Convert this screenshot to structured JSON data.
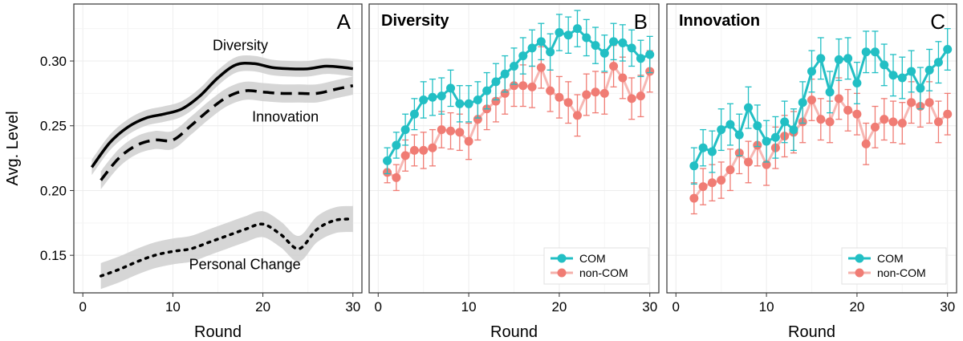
{
  "colors": {
    "com": "#22bfc4",
    "noncom": "#f07c74",
    "band": "#cfcfcf",
    "grid": "#ececec",
    "frame": "#333333"
  },
  "chart_data": [
    {
      "id": "A",
      "type": "line",
      "panel_letter": "A",
      "title": "",
      "xlabel": "Round",
      "ylabel": "Avg. Level",
      "xlim": [
        -1,
        31
      ],
      "ylim": [
        0.121,
        0.344
      ],
      "xticks": [
        0,
        10,
        20,
        30
      ],
      "yticks": [
        0.15,
        0.2,
        0.25,
        0.3
      ],
      "ytick_labels": [
        "0.15",
        "0.20",
        "0.25",
        "0.30"
      ],
      "series": [
        {
          "name": "Diversity",
          "style": "solid",
          "band_halfwidth": 0.006,
          "x": [
            1,
            3,
            5,
            7,
            9,
            11,
            13,
            15,
            17,
            19,
            21,
            23,
            25,
            27,
            29,
            30
          ],
          "values": [
            0.218,
            0.237,
            0.249,
            0.256,
            0.259,
            0.263,
            0.273,
            0.287,
            0.297,
            0.298,
            0.295,
            0.294,
            0.294,
            0.296,
            0.295,
            0.294
          ]
        },
        {
          "name": "Innovation",
          "style": "dashed",
          "band_halfwidth": 0.007,
          "x": [
            2,
            4,
            6,
            8,
            10,
            12,
            14,
            16,
            18,
            20,
            22,
            24,
            26,
            28,
            30
          ],
          "values": [
            0.208,
            0.225,
            0.235,
            0.239,
            0.239,
            0.25,
            0.262,
            0.272,
            0.277,
            0.276,
            0.275,
            0.275,
            0.275,
            0.278,
            0.281
          ]
        },
        {
          "name": "Personal Change",
          "style": "dotted",
          "band_halfwidth": 0.01,
          "x": [
            2,
            4,
            6,
            8,
            10,
            12,
            14,
            16,
            18,
            20,
            22,
            24,
            26,
            28,
            30
          ],
          "values": [
            0.134,
            0.139,
            0.145,
            0.15,
            0.153,
            0.155,
            0.16,
            0.165,
            0.17,
            0.174,
            0.166,
            0.155,
            0.17,
            0.177,
            0.178
          ]
        }
      ],
      "annotations": [
        {
          "text": "Diversity",
          "x": 17.5,
          "y": 0.312
        },
        {
          "text": "Innovation",
          "x": 22.5,
          "y": 0.257
        },
        {
          "text": "Personal Change",
          "x": 18,
          "y": 0.143
        }
      ]
    },
    {
      "id": "B",
      "type": "line",
      "panel_letter": "B",
      "title": "Diversity",
      "xlabel": "Round",
      "ylabel": "",
      "xlim": [
        -1,
        31
      ],
      "ylim": [
        0.121,
        0.344
      ],
      "xticks": [
        0,
        10,
        20,
        30
      ],
      "legend": {
        "position": "bottom-right",
        "entries": [
          "COM",
          "non-COM"
        ]
      },
      "series": [
        {
          "name": "COM",
          "color_key": "com",
          "x": [
            1,
            2,
            3,
            4,
            5,
            6,
            7,
            8,
            9,
            10,
            11,
            12,
            13,
            14,
            15,
            16,
            17,
            18,
            19,
            20,
            21,
            22,
            23,
            24,
            25,
            26,
            27,
            28,
            29,
            30
          ],
          "values": [
            0.223,
            0.235,
            0.247,
            0.259,
            0.27,
            0.272,
            0.273,
            0.279,
            0.267,
            0.267,
            0.27,
            0.277,
            0.284,
            0.29,
            0.296,
            0.304,
            0.31,
            0.315,
            0.307,
            0.322,
            0.32,
            0.325,
            0.318,
            0.312,
            0.306,
            0.315,
            0.314,
            0.31,
            0.302,
            0.305
          ],
          "err": [
            0.01,
            0.01,
            0.012,
            0.012,
            0.014,
            0.014,
            0.014,
            0.014,
            0.014,
            0.014,
            0.014,
            0.014,
            0.014,
            0.014,
            0.014,
            0.014,
            0.014,
            0.014,
            0.014,
            0.014,
            0.014,
            0.014,
            0.014,
            0.014,
            0.014,
            0.014,
            0.014,
            0.014,
            0.014,
            0.014
          ]
        },
        {
          "name": "non-COM",
          "color_key": "noncom",
          "x": [
            1,
            2,
            3,
            4,
            5,
            6,
            7,
            8,
            9,
            10,
            11,
            12,
            13,
            14,
            15,
            16,
            17,
            18,
            19,
            20,
            21,
            22,
            23,
            24,
            25,
            26,
            27,
            28,
            29,
            30
          ],
          "values": [
            0.214,
            0.21,
            0.227,
            0.231,
            0.231,
            0.233,
            0.247,
            0.246,
            0.245,
            0.238,
            0.255,
            0.263,
            0.269,
            0.275,
            0.281,
            0.281,
            0.28,
            0.295,
            0.277,
            0.272,
            0.268,
            0.258,
            0.274,
            0.276,
            0.275,
            0.296,
            0.287,
            0.271,
            0.273,
            0.292
          ],
          "err": [
            0.008,
            0.01,
            0.012,
            0.012,
            0.014,
            0.014,
            0.014,
            0.014,
            0.014,
            0.014,
            0.016,
            0.016,
            0.016,
            0.016,
            0.016,
            0.016,
            0.016,
            0.016,
            0.016,
            0.016,
            0.016,
            0.016,
            0.016,
            0.016,
            0.016,
            0.016,
            0.016,
            0.016,
            0.016,
            0.016
          ]
        }
      ]
    },
    {
      "id": "C",
      "type": "line",
      "panel_letter": "C",
      "title": "Innovation",
      "xlabel": "Round",
      "ylabel": "",
      "xlim": [
        -1,
        31
      ],
      "ylim": [
        0.121,
        0.344
      ],
      "xticks": [
        0,
        10,
        20,
        30
      ],
      "legend": {
        "position": "bottom-right",
        "entries": [
          "COM",
          "non-COM"
        ]
      },
      "series": [
        {
          "name": "COM",
          "color_key": "com",
          "x": [
            2,
            3,
            4,
            5,
            6,
            7,
            8,
            9,
            10,
            11,
            12,
            13,
            14,
            15,
            16,
            17,
            18,
            19,
            20,
            21,
            22,
            23,
            24,
            25,
            26,
            27,
            28,
            29,
            30
          ],
          "values": [
            0.219,
            0.233,
            0.23,
            0.247,
            0.251,
            0.243,
            0.264,
            0.25,
            0.238,
            0.241,
            0.253,
            0.247,
            0.268,
            0.292,
            0.302,
            0.276,
            0.301,
            0.302,
            0.283,
            0.307,
            0.307,
            0.297,
            0.289,
            0.287,
            0.292,
            0.279,
            0.293,
            0.299,
            0.309
          ],
          "err": [
            0.014,
            0.014,
            0.016,
            0.016,
            0.016,
            0.016,
            0.016,
            0.016,
            0.016,
            0.016,
            0.016,
            0.016,
            0.016,
            0.016,
            0.016,
            0.016,
            0.016,
            0.016,
            0.016,
            0.016,
            0.016,
            0.016,
            0.016,
            0.016,
            0.016,
            0.016,
            0.016,
            0.016,
            0.016
          ]
        },
        {
          "name": "non-COM",
          "color_key": "noncom",
          "x": [
            2,
            3,
            4,
            5,
            6,
            7,
            8,
            9,
            10,
            11,
            12,
            13,
            14,
            15,
            16,
            17,
            18,
            19,
            20,
            21,
            22,
            23,
            24,
            25,
            26,
            27,
            28,
            29,
            30
          ],
          "values": [
            0.194,
            0.203,
            0.206,
            0.208,
            0.216,
            0.229,
            0.222,
            0.235,
            0.22,
            0.233,
            0.242,
            0.245,
            0.253,
            0.27,
            0.255,
            0.253,
            0.271,
            0.262,
            0.259,
            0.236,
            0.249,
            0.255,
            0.253,
            0.252,
            0.268,
            0.265,
            0.268,
            0.253,
            0.259
          ],
          "err": [
            0.012,
            0.014,
            0.014,
            0.014,
            0.016,
            0.016,
            0.016,
            0.016,
            0.016,
            0.016,
            0.016,
            0.016,
            0.016,
            0.016,
            0.016,
            0.016,
            0.016,
            0.016,
            0.016,
            0.016,
            0.016,
            0.016,
            0.016,
            0.016,
            0.016,
            0.016,
            0.016,
            0.016,
            0.016
          ]
        }
      ]
    }
  ]
}
